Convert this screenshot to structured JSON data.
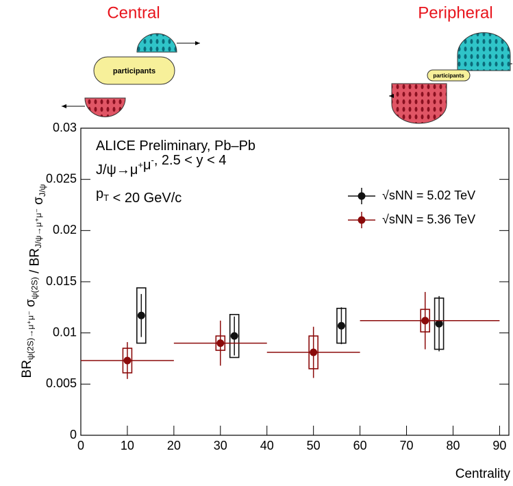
{
  "diagram": {
    "left_label": "Central",
    "right_label": "Peripheral",
    "participants": [
      "participants",
      "participants"
    ]
  },
  "chart_data": {
    "type": "errorbar",
    "annotations": [
      [
        {
          "text": "ALICE Preliminary, Pb–Pb",
          "sub": false
        }
      ],
      [
        {
          "text": "J/ψ→μ",
          "sub": false
        },
        {
          "text": "+",
          "sup": true
        },
        {
          "text": "μ",
          "sub": false
        },
        {
          "text": "-",
          "sup": true
        },
        {
          "text": ", 2.5 <   y < 4",
          "sub": false
        }
      ],
      [
        {
          "text": "p",
          "sub": false
        },
        {
          "text": "T",
          "sub": true
        },
        {
          "text": " < 20 GeV/c",
          "sub": false
        }
      ]
    ],
    "ylabel": [
      {
        "text": "BR",
        "sub": false
      },
      {
        "text": "ψ(2S)→μ⁺μ⁻",
        "sub": true
      },
      {
        "text": " σ",
        "sub": false
      },
      {
        "text": "ψ(2S)",
        "sub": true
      },
      {
        "text": " / BR",
        "sub": false
      },
      {
        "text": "J/ψ→μ⁺μ⁻",
        "sub": true
      },
      {
        "text": " σ",
        "sub": false
      },
      {
        "text": "J/ψ",
        "sub": true
      }
    ],
    "xlabel": "Centrality",
    "xlim": [
      0,
      92
    ],
    "ylim": [
      0,
      0.03
    ],
    "xticks": [
      0,
      10,
      20,
      30,
      40,
      50,
      60,
      70,
      80,
      90
    ],
    "yticks": [
      0,
      0.005,
      0.01,
      0.015,
      0.02,
      0.025,
      0.03
    ],
    "legend": "upper right",
    "series": [
      {
        "name": "√sNN = 5.02 TeV",
        "color": "#111111",
        "x": [
          13,
          33,
          56,
          77
        ],
        "values": [
          0.0117,
          0.0097,
          0.0107,
          0.0109
        ],
        "stat_err": [
          0.0021,
          0.0019,
          0.0018,
          0.0027
        ],
        "sys_err": [
          0.0027,
          0.0021,
          0.0017,
          0.0025
        ]
      },
      {
        "name": "√sNN = 5.36 TeV",
        "color": "#8b0a0a",
        "x": [
          10,
          30,
          50,
          74
        ],
        "values": [
          0.0073,
          0.009,
          0.0081,
          0.0112
        ],
        "stat_err": [
          0.0018,
          0.0022,
          0.0025,
          0.0028
        ],
        "sys_err": [
          0.0012,
          0.0007,
          0.0016,
          0.0011
        ],
        "x_low": [
          0,
          20,
          40,
          60
        ],
        "x_high": [
          20,
          40,
          60,
          90
        ]
      }
    ]
  }
}
